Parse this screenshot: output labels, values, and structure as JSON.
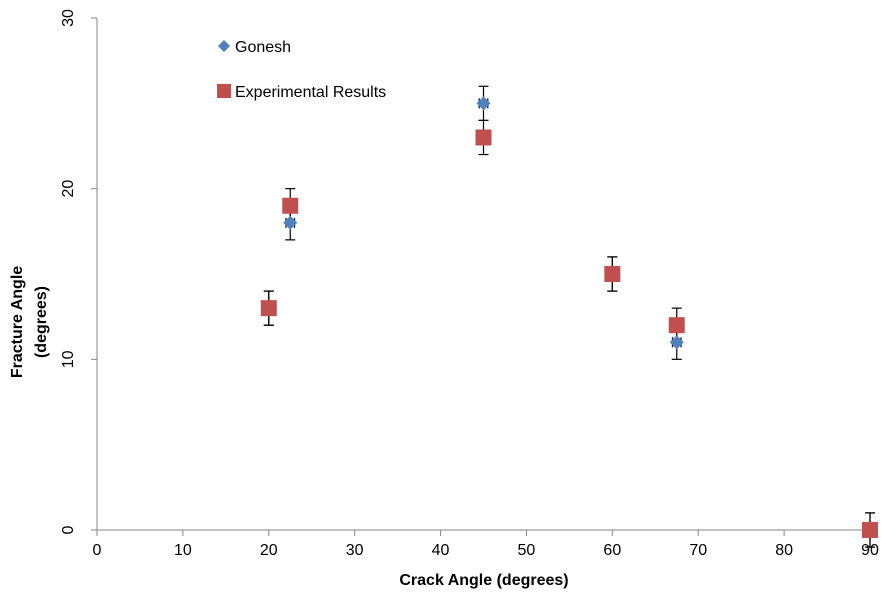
{
  "chart_data": {
    "type": "scatter",
    "title": "",
    "xlabel": "Crack Angle (degrees)",
    "ylabel_lines": [
      "Fracture Angle",
      "(degrees)"
    ],
    "xlim": [
      0,
      90
    ],
    "ylim": [
      0,
      30
    ],
    "x_ticks": [
      "0",
      "10",
      "20",
      "30",
      "40",
      "50",
      "60",
      "70",
      "80",
      "90"
    ],
    "y_ticks": [
      "0",
      "10",
      "20",
      "30"
    ],
    "grid": false,
    "legend_position": "top-left",
    "series": [
      {
        "name": "Gonesh",
        "marker": "diamond",
        "color": "#4F81BD",
        "points": [
          {
            "x": 20,
            "y": 13,
            "yerr": 1,
            "xerr": 0
          },
          {
            "x": 22.5,
            "y": 18,
            "yerr": 1,
            "xerr": 0.5
          },
          {
            "x": 45,
            "y": 25,
            "yerr": 1,
            "xerr": 0.5
          },
          {
            "x": 60,
            "y": 15,
            "yerr": 1,
            "xerr": 0.5
          },
          {
            "x": 67.5,
            "y": 11,
            "yerr": 1,
            "xerr": 0.5
          },
          {
            "x": 90,
            "y": 0,
            "yerr": 1,
            "xerr": 0
          }
        ]
      },
      {
        "name": "Experimental Results",
        "marker": "square",
        "color": "#C0504D",
        "points": [
          {
            "x": 20,
            "y": 13,
            "yerr": 1,
            "xerr": 0
          },
          {
            "x": 22.5,
            "y": 19,
            "yerr": 1,
            "xerr": 0.5
          },
          {
            "x": 45,
            "y": 23,
            "yerr": 1,
            "xerr": 0.5
          },
          {
            "x": 60,
            "y": 15,
            "yerr": 1,
            "xerr": 0.5
          },
          {
            "x": 67.5,
            "y": 12,
            "yerr": 1,
            "xerr": 0.5
          },
          {
            "x": 90,
            "y": 0,
            "yerr": 1,
            "xerr": 0
          }
        ]
      }
    ]
  }
}
